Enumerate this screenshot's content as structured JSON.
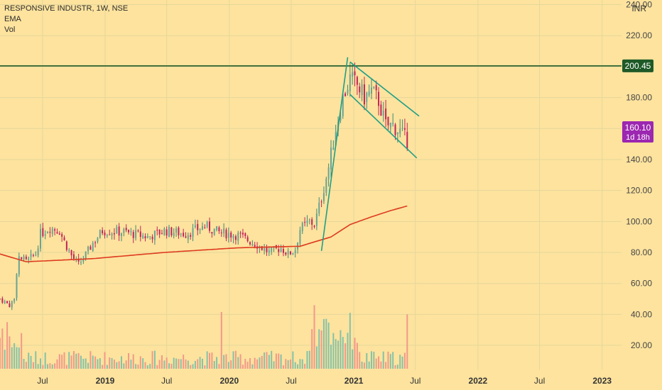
{
  "legend": {
    "symbol_line": "RESPONSIVE INDUSTR, 1W, NSE",
    "ema_label": "EMA",
    "vol_label": "Vol"
  },
  "axis": {
    "currency": "INR"
  },
  "colors": {
    "background": "#fde39e",
    "up": "#6aa494",
    "down": "#c1245a",
    "wick_up": "#3f8a77",
    "vol_up": "#87c2a7",
    "vol_down": "#f2998a",
    "ema": "#de3a1f",
    "trend": "#1f9e86",
    "resistance": "#1e5a27",
    "grid": "#e5d79a",
    "price_badge": "#9c27b0"
  },
  "chart_data": {
    "type": "candlestick",
    "symbol": "RESPONSIVE INDUSTR",
    "interval": "1W",
    "exchange": "NSE",
    "y_axis": {
      "min": 4,
      "max": 243,
      "ticks": [
        20,
        40,
        60,
        80,
        100,
        120,
        140,
        160,
        180,
        200,
        220,
        240
      ],
      "tick_labels": [
        "20.00",
        "40.00",
        "60.00",
        "80.00",
        "100.00",
        "120.00",
        "140.00",
        "160.00",
        "180.00",
        "200.00",
        "220.00",
        "240.00"
      ]
    },
    "x_axis": {
      "start": "2018-02-26",
      "end": "2023-02-27",
      "ticks": [
        {
          "date": "2018-07-01",
          "label": "Jul",
          "bold": false
        },
        {
          "date": "2019-01-01",
          "label": "2019",
          "bold": true
        },
        {
          "date": "2019-07-01",
          "label": "Jul",
          "bold": false
        },
        {
          "date": "2020-01-01",
          "label": "2020",
          "bold": true
        },
        {
          "date": "2020-07-01",
          "label": "Jul",
          "bold": false
        },
        {
          "date": "2021-01-01",
          "label": "2021",
          "bold": true
        },
        {
          "date": "2021-07-01",
          "label": "Jul",
          "bold": false
        },
        {
          "date": "2022-01-01",
          "label": "2022",
          "bold": true
        },
        {
          "date": "2022-07-01",
          "label": "Jul",
          "bold": false
        },
        {
          "date": "2023-01-01",
          "label": "2023",
          "bold": true
        }
      ]
    },
    "price_anchors": [
      [
        "2018-02-26",
        50
      ],
      [
        "2018-03-12",
        48
      ],
      [
        "2018-03-26",
        46
      ],
      [
        "2018-04-09",
        50
      ],
      [
        "2018-04-16",
        68
      ],
      [
        "2018-04-23",
        77
      ],
      [
        "2018-05-14",
        74
      ],
      [
        "2018-06-11",
        79
      ],
      [
        "2018-06-25",
        92
      ],
      [
        "2018-07-23",
        96
      ],
      [
        "2018-08-20",
        94
      ],
      [
        "2018-09-03",
        87
      ],
      [
        "2018-09-24",
        78
      ],
      [
        "2018-10-15",
        72
      ],
      [
        "2018-10-29",
        76
      ],
      [
        "2018-11-26",
        86
      ],
      [
        "2018-12-24",
        94
      ],
      [
        "2019-03-04",
        93
      ],
      [
        "2019-05-06",
        90
      ],
      [
        "2019-06-24",
        94
      ],
      [
        "2019-08-26",
        92
      ],
      [
        "2019-10-21",
        97
      ],
      [
        "2019-12-02",
        93
      ],
      [
        "2020-01-27",
        91
      ],
      [
        "2020-03-23",
        85
      ],
      [
        "2020-04-27",
        80
      ],
      [
        "2020-06-01",
        83
      ],
      [
        "2020-06-22",
        79
      ],
      [
        "2020-07-13",
        82
      ],
      [
        "2020-07-27",
        95
      ],
      [
        "2020-08-24",
        100
      ],
      [
        "2020-09-07",
        98
      ],
      [
        "2020-09-28",
        115
      ],
      [
        "2020-10-19",
        135
      ],
      [
        "2020-11-09",
        160
      ],
      [
        "2020-11-30",
        180
      ],
      [
        "2020-12-21",
        192
      ],
      [
        "2021-01-11",
        188
      ],
      [
        "2021-02-01",
        180
      ],
      [
        "2021-02-22",
        184
      ],
      [
        "2021-03-15",
        178
      ],
      [
        "2021-04-05",
        162
      ],
      [
        "2021-04-26",
        162
      ],
      [
        "2021-05-17",
        158
      ],
      [
        "2021-06-07",
        152
      ]
    ],
    "ema_anchors": [
      [
        "2018-02-26",
        79
      ],
      [
        "2018-05-14",
        74
      ],
      [
        "2018-11-26",
        76
      ],
      [
        "2019-06-24",
        80
      ],
      [
        "2020-01-27",
        83
      ],
      [
        "2020-07-27",
        84
      ],
      [
        "2020-10-26",
        90
      ],
      [
        "2020-12-21",
        98
      ],
      [
        "2021-02-22",
        103
      ],
      [
        "2021-04-19",
        107
      ],
      [
        "2021-06-07",
        110
      ]
    ],
    "volume_spikes": [
      [
        "2019-12-09",
        0.5
      ],
      [
        "2020-09-07",
        0.56
      ],
      [
        "2020-10-12",
        0.44
      ],
      [
        "2021-06-07",
        0.48
      ]
    ],
    "annotations": {
      "resistance_level": 200.45,
      "resistance_label": "200.45",
      "last_price_label": "160.10",
      "countdown_label": "1d 18h",
      "trendlines": [
        {
          "from": [
            "2020-09-28",
            81
          ],
          "to": [
            "2020-12-14",
            206
          ]
        },
        {
          "from": [
            "2020-12-21",
            203
          ],
          "to": [
            "2021-07-12",
            168
          ]
        },
        {
          "from": [
            "2020-12-21",
            182
          ],
          "to": [
            "2021-07-05",
            141
          ]
        }
      ]
    }
  }
}
